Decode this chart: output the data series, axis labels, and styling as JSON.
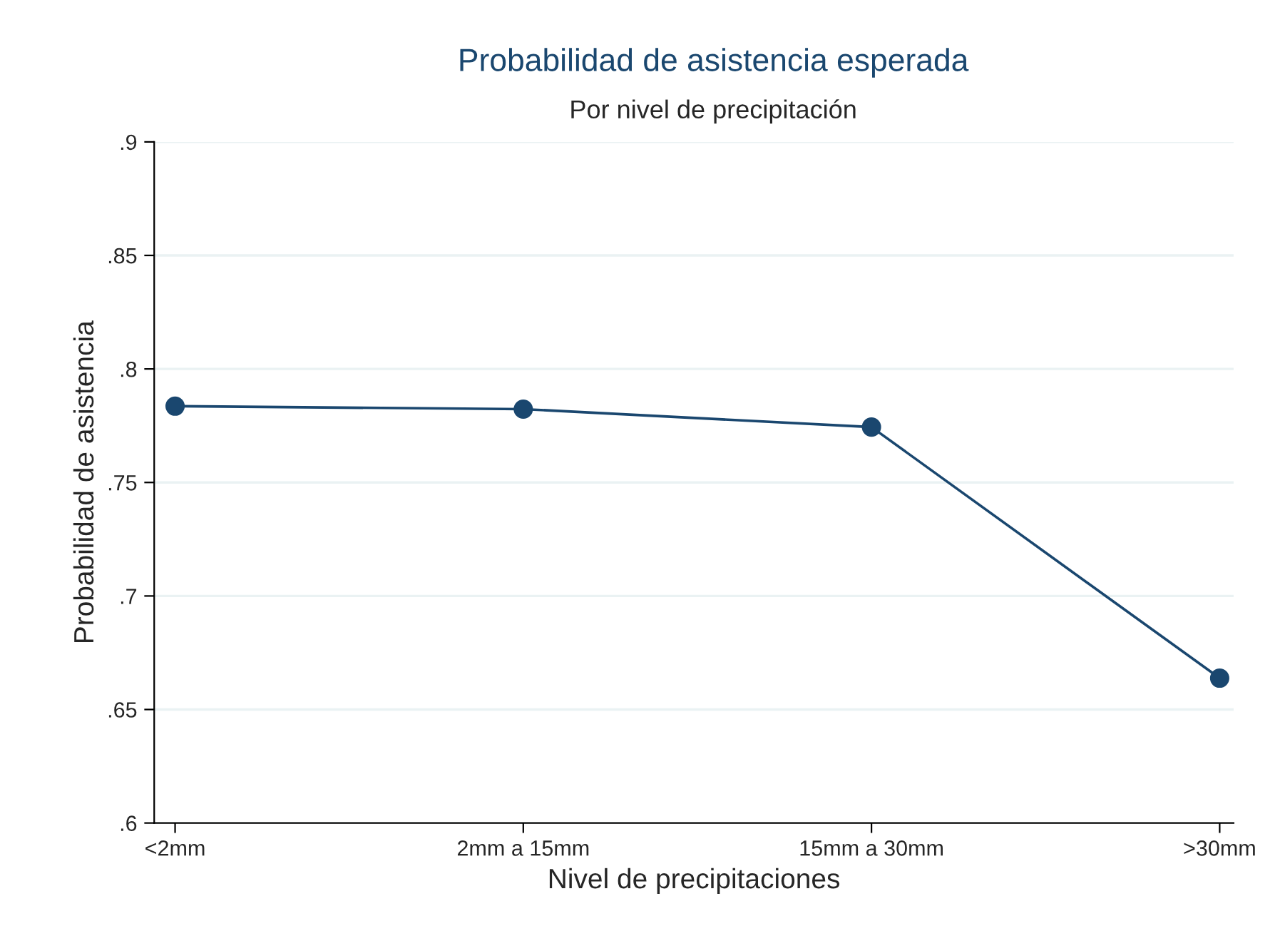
{
  "chart_data": {
    "type": "line",
    "title": "Probabilidad de asistencia esperada",
    "subtitle": "Por nivel de precipitación",
    "xlabel": "Nivel de precipitaciones",
    "ylabel": "Probabilidad de asistencia",
    "categories": [
      "<2mm",
      "2mm a 15mm",
      "15mm a 30mm",
      ">30mm"
    ],
    "series": [
      {
        "color": "#1a476f",
        "values": [
          0.7836,
          0.7823,
          0.7744,
          0.6638
        ]
      }
    ],
    "ylim": [
      0.6,
      0.9
    ],
    "yticks": [
      {
        "value": 0.6,
        "label": ".6"
      },
      {
        "value": 0.65,
        "label": ".65"
      },
      {
        "value": 0.7,
        "label": ".7"
      },
      {
        "value": 0.75,
        "label": ".75"
      },
      {
        "value": 0.8,
        "label": ".8"
      },
      {
        "value": 0.85,
        "label": ".85"
      },
      {
        "value": 0.9,
        "label": ".9"
      }
    ],
    "grid": "y",
    "marker": "circle",
    "line_style": "solid",
    "legend": false
  }
}
